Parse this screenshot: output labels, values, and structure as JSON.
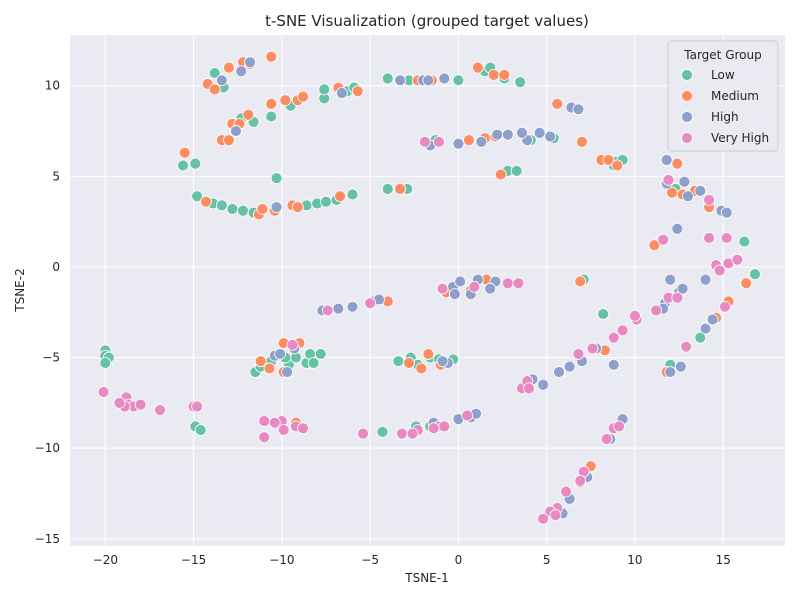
{
  "chart_data": {
    "type": "scatter",
    "title": "t-SNE Visualization (grouped target values)",
    "xlabel": "TSNE-1",
    "ylabel": "TSNE-2",
    "xlim": [
      -22,
      18.5
    ],
    "ylim": [
      -15.4,
      12.8
    ],
    "xticks": [
      -20,
      -15,
      -10,
      -5,
      0,
      5,
      10,
      15
    ],
    "yticks": [
      -15,
      -10,
      -5,
      0,
      5,
      10
    ],
    "grid": true,
    "legend": {
      "title": "Target Group",
      "placement": "top-right"
    },
    "series": [
      {
        "name": "Low",
        "color": "#66c2a5",
        "points": [
          [
            -13.8,
            10.7
          ],
          [
            -13.3,
            9.9
          ],
          [
            -12.3,
            8.2
          ],
          [
            -11.6,
            8.0
          ],
          [
            -10.6,
            8.3
          ],
          [
            -9.5,
            8.9
          ],
          [
            -7.6,
            9.3
          ],
          [
            -7.6,
            9.8
          ],
          [
            -6.3,
            9.7
          ],
          [
            -5.9,
            9.9
          ],
          [
            -4,
            10.4
          ],
          [
            -2.8,
            10.3
          ],
          [
            -1.6,
            10.3
          ],
          [
            0,
            10.3
          ],
          [
            1.5,
            10.8
          ],
          [
            1.8,
            11.0
          ],
          [
            2.6,
            10.4
          ],
          [
            3.5,
            10.2
          ],
          [
            -15.6,
            5.6
          ],
          [
            -14.9,
            5.7
          ],
          [
            -10.3,
            4.9
          ],
          [
            -14.8,
            3.9
          ],
          [
            -13.9,
            3.5
          ],
          [
            -13.4,
            3.4
          ],
          [
            -12.8,
            3.2
          ],
          [
            -12.2,
            3.1
          ],
          [
            -11.6,
            3.0
          ],
          [
            -8.6,
            3.4
          ],
          [
            -8.0,
            3.5
          ],
          [
            -7.5,
            3.6
          ],
          [
            -6.9,
            3.7
          ],
          [
            -6.0,
            4.0
          ],
          [
            -4.0,
            4.3
          ],
          [
            -2.9,
            4.3
          ],
          [
            -1.3,
            7.0
          ],
          [
            4.1,
            7.0
          ],
          [
            5.4,
            7.1
          ],
          [
            2.8,
            5.3
          ],
          [
            3.3,
            5.3
          ],
          [
            8.9,
            5.8
          ],
          [
            8.8,
            5.6
          ],
          [
            9.3,
            5.9
          ],
          [
            16.2,
            1.4
          ],
          [
            16.8,
            -0.4
          ],
          [
            7.1,
            -0.7
          ],
          [
            -20.0,
            -4.6
          ],
          [
            -20.0,
            -4.9
          ],
          [
            -19.8,
            -5.0
          ],
          [
            -20.0,
            -5.3
          ],
          [
            -11.5,
            -5.8
          ],
          [
            -11.2,
            -5.5
          ],
          [
            -10.6,
            -5.2
          ],
          [
            -9.6,
            -5.4
          ],
          [
            -9.2,
            -5.0
          ],
          [
            -8.6,
            -5.3
          ],
          [
            -8.4,
            -4.8
          ],
          [
            -7.8,
            -4.8
          ],
          [
            -8.2,
            -5.3
          ],
          [
            -9.8,
            -5.0
          ],
          [
            -3.4,
            -5.2
          ],
          [
            -2.7,
            -5.0
          ],
          [
            -2.3,
            -5.4
          ],
          [
            -1.6,
            -5.0
          ],
          [
            -1.1,
            -5.1
          ],
          [
            -0.3,
            -5.1
          ],
          [
            -14.9,
            -8.8
          ],
          [
            -14.6,
            -9.0
          ],
          [
            -4.3,
            -9.1
          ],
          [
            -2.4,
            -8.8
          ],
          [
            -1.6,
            -8.8
          ],
          [
            8.2,
            -2.6
          ],
          [
            12.0,
            -5.4
          ],
          [
            13.7,
            -3.9
          ],
          [
            12.3,
            4.3
          ]
        ]
      },
      {
        "name": "Medium",
        "color": "#fc8d62",
        "points": [
          [
            -14.2,
            10.1
          ],
          [
            -13.8,
            9.8
          ],
          [
            -13.0,
            11.0
          ],
          [
            -12.2,
            11.3
          ],
          [
            -11.8,
            11.2
          ],
          [
            -10.6,
            11.6
          ],
          [
            -9.8,
            9.2
          ],
          [
            -9.1,
            9.2
          ],
          [
            -8.8,
            9.4
          ],
          [
            -6.8,
            9.9
          ],
          [
            -5.7,
            9.7
          ],
          [
            -10.6,
            9.0
          ],
          [
            -11.9,
            8.4
          ],
          [
            -12.8,
            7.9
          ],
          [
            -12.4,
            7.9
          ],
          [
            -13.4,
            7.0
          ],
          [
            -13.0,
            7.0
          ],
          [
            -15.5,
            6.3
          ],
          [
            -2.3,
            10.3
          ],
          [
            -1.5,
            10.3
          ],
          [
            1.1,
            11.0
          ],
          [
            2.0,
            10.6
          ],
          [
            2.6,
            10.6
          ],
          [
            0.6,
            7.0
          ],
          [
            1.5,
            7.1
          ],
          [
            2.1,
            7.2
          ],
          [
            5.6,
            9.0
          ],
          [
            7.0,
            6.9
          ],
          [
            8.1,
            5.9
          ],
          [
            8.5,
            5.9
          ],
          [
            9.0,
            5.6
          ],
          [
            -14.3,
            3.6
          ],
          [
            -11.3,
            2.9
          ],
          [
            -11.1,
            3.2
          ],
          [
            -10.4,
            3.1
          ],
          [
            -9.4,
            3.4
          ],
          [
            -9.1,
            3.3
          ],
          [
            -6.7,
            3.9
          ],
          [
            -3.3,
            4.3
          ],
          [
            2.4,
            5.1
          ],
          [
            12.4,
            5.7
          ],
          [
            13.4,
            4.2
          ],
          [
            14.2,
            3.3
          ],
          [
            12.1,
            4.1
          ],
          [
            11.1,
            1.2
          ],
          [
            12.7,
            4.0
          ],
          [
            -4.0,
            -1.9
          ],
          [
            -0.7,
            -1.4
          ],
          [
            0.7,
            -1.3
          ],
          [
            1.6,
            -0.7
          ],
          [
            6.9,
            -0.8
          ],
          [
            16.3,
            -0.9
          ],
          [
            15.3,
            -1.9
          ],
          [
            14.6,
            -2.8
          ],
          [
            8.3,
            -4.6
          ],
          [
            11.8,
            -5.8
          ],
          [
            -11.2,
            -5.2
          ],
          [
            -10.7,
            -5.6
          ],
          [
            -9.9,
            -5.8
          ],
          [
            -9.9,
            -4.2
          ],
          [
            -9.0,
            -4.2
          ],
          [
            -2.8,
            -5.3
          ],
          [
            -2.1,
            -5.6
          ],
          [
            -1.7,
            -4.8
          ],
          [
            -1.0,
            -5.4
          ],
          [
            -9.2,
            -8.6
          ],
          [
            7.5,
            -11.0
          ],
          [
            6.9,
            -11.9
          ]
        ]
      },
      {
        "name": "High",
        "color": "#8da0cb",
        "points": [
          [
            -13.4,
            10.3
          ],
          [
            -11.8,
            11.3
          ],
          [
            -12.3,
            10.8
          ],
          [
            -12.6,
            7.5
          ],
          [
            -6.6,
            9.6
          ],
          [
            -3.3,
            10.3
          ],
          [
            -2.0,
            10.3
          ],
          [
            -1.7,
            10.3
          ],
          [
            -0.8,
            10.4
          ],
          [
            -1.6,
            6.7
          ],
          [
            0.0,
            6.8
          ],
          [
            1.3,
            6.9
          ],
          [
            2.2,
            7.3
          ],
          [
            2.8,
            7.3
          ],
          [
            3.9,
            7.0
          ],
          [
            4.6,
            7.4
          ],
          [
            5.2,
            7.2
          ],
          [
            3.6,
            7.4
          ],
          [
            6.4,
            8.8
          ],
          [
            6.8,
            8.7
          ],
          [
            -10.3,
            3.3
          ],
          [
            11.8,
            5.9
          ],
          [
            11.8,
            4.6
          ],
          [
            12.8,
            4.7
          ],
          [
            13.0,
            3.9
          ],
          [
            14.9,
            3.1
          ],
          [
            15.2,
            3.0
          ],
          [
            12.4,
            2.1
          ],
          [
            13.7,
            4.2
          ],
          [
            -0.3,
            -1.1
          ],
          [
            0.1,
            -0.8
          ],
          [
            0.7,
            -1.5
          ],
          [
            1.1,
            -0.7
          ],
          [
            2.1,
            -0.8
          ],
          [
            -0.2,
            -1.5
          ],
          [
            1.8,
            -1.2
          ],
          [
            12.0,
            -0.7
          ],
          [
            11.7,
            -2.0
          ],
          [
            12.5,
            -1.4
          ],
          [
            12.7,
            -1.2
          ],
          [
            14.0,
            -0.7
          ],
          [
            -7.7,
            -2.4
          ],
          [
            -6.8,
            -2.3
          ],
          [
            -6.0,
            -2.2
          ],
          [
            -4.8,
            -1.9
          ],
          [
            -4.5,
            -1.8
          ],
          [
            7.8,
            -4.5
          ],
          [
            7.0,
            -5.2
          ],
          [
            6.3,
            -5.5
          ],
          [
            5.7,
            -5.8
          ],
          [
            11.6,
            -2.3
          ],
          [
            14.0,
            -3.4
          ],
          [
            14.4,
            -2.9
          ],
          [
            -10.4,
            -4.9
          ],
          [
            -10.1,
            -4.8
          ],
          [
            -9.3,
            -4.5
          ],
          [
            -9.7,
            -5.8
          ],
          [
            -0.6,
            -5.3
          ],
          [
            -0.9,
            -5.2
          ],
          [
            8.8,
            -5.4
          ],
          [
            -1.4,
            -8.6
          ],
          [
            0.0,
            -8.4
          ],
          [
            0.7,
            -8.3
          ],
          [
            1.0,
            -8.1
          ],
          [
            4.8,
            -6.5
          ],
          [
            4.2,
            -6.2
          ],
          [
            9.3,
            -8.4
          ],
          [
            12.6,
            -5.5
          ],
          [
            12.0,
            -5.8
          ],
          [
            8.6,
            -9.5
          ],
          [
            5.9,
            -13.6
          ],
          [
            6.3,
            -12.8
          ],
          [
            7.3,
            -11.6
          ]
        ]
      },
      {
        "name": "Very High",
        "color": "#e78ac3",
        "points": [
          [
            -1.9,
            6.9
          ],
          [
            -1.1,
            6.9
          ],
          [
            11.9,
            4.8
          ],
          [
            14.2,
            3.7
          ],
          [
            15.2,
            1.6
          ],
          [
            14.2,
            1.6
          ],
          [
            11.6,
            1.5
          ],
          [
            14.6,
            0.1
          ],
          [
            15.3,
            0.2
          ],
          [
            15.8,
            0.4
          ],
          [
            14.8,
            -0.2
          ],
          [
            -0.9,
            -1.2
          ],
          [
            0.9,
            -1.1
          ],
          [
            2.8,
            -0.9
          ],
          [
            3.4,
            -0.9
          ],
          [
            11.9,
            -1.7
          ],
          [
            12.4,
            -1.7
          ],
          [
            11.2,
            -2.4
          ],
          [
            10.1,
            -2.9
          ],
          [
            10.0,
            -2.7
          ],
          [
            9.3,
            -3.5
          ],
          [
            8.8,
            -3.9
          ],
          [
            15.1,
            -2.2
          ],
          [
            12.9,
            -4.4
          ],
          [
            -7.4,
            -2.4
          ],
          [
            -5.0,
            -2.0
          ],
          [
            7.6,
            -4.5
          ],
          [
            6.8,
            -4.8
          ],
          [
            3.6,
            -6.7
          ],
          [
            3.9,
            -6.3
          ],
          [
            4.0,
            -6.7
          ],
          [
            -20.1,
            -6.9
          ],
          [
            -18.8,
            -7.2
          ],
          [
            -18.7,
            -7.6
          ],
          [
            -18.4,
            -7.7
          ],
          [
            -18.9,
            -7.7
          ],
          [
            -18.0,
            -7.6
          ],
          [
            -19.2,
            -7.5
          ],
          [
            -16.9,
            -7.9
          ],
          [
            -15.0,
            -7.7
          ],
          [
            -14.8,
            -7.7
          ],
          [
            -11.0,
            -9.4
          ],
          [
            -10.0,
            -8.5
          ],
          [
            -9.9,
            -9.0
          ],
          [
            -9.2,
            -8.8
          ],
          [
            -8.8,
            -8.9
          ],
          [
            -11.0,
            -8.5
          ],
          [
            -10.4,
            -8.6
          ],
          [
            -9.4,
            -4.3
          ],
          [
            -5.4,
            -9.2
          ],
          [
            -3.2,
            -9.2
          ],
          [
            -2.3,
            -9.0
          ],
          [
            -1.1,
            -8.8
          ],
          [
            -0.8,
            -8.8
          ],
          [
            -1.4,
            -8.9
          ],
          [
            -2.6,
            -9.2
          ],
          [
            0.5,
            -8.2
          ],
          [
            8.4,
            -9.5
          ],
          [
            8.8,
            -8.9
          ],
          [
            9.1,
            -8.8
          ],
          [
            7.1,
            -11.3
          ],
          [
            6.9,
            -11.8
          ],
          [
            5.6,
            -13.3
          ],
          [
            5.2,
            -13.5
          ],
          [
            5.5,
            -13.7
          ],
          [
            4.8,
            -13.9
          ],
          [
            6.1,
            -12.4
          ]
        ]
      }
    ]
  }
}
